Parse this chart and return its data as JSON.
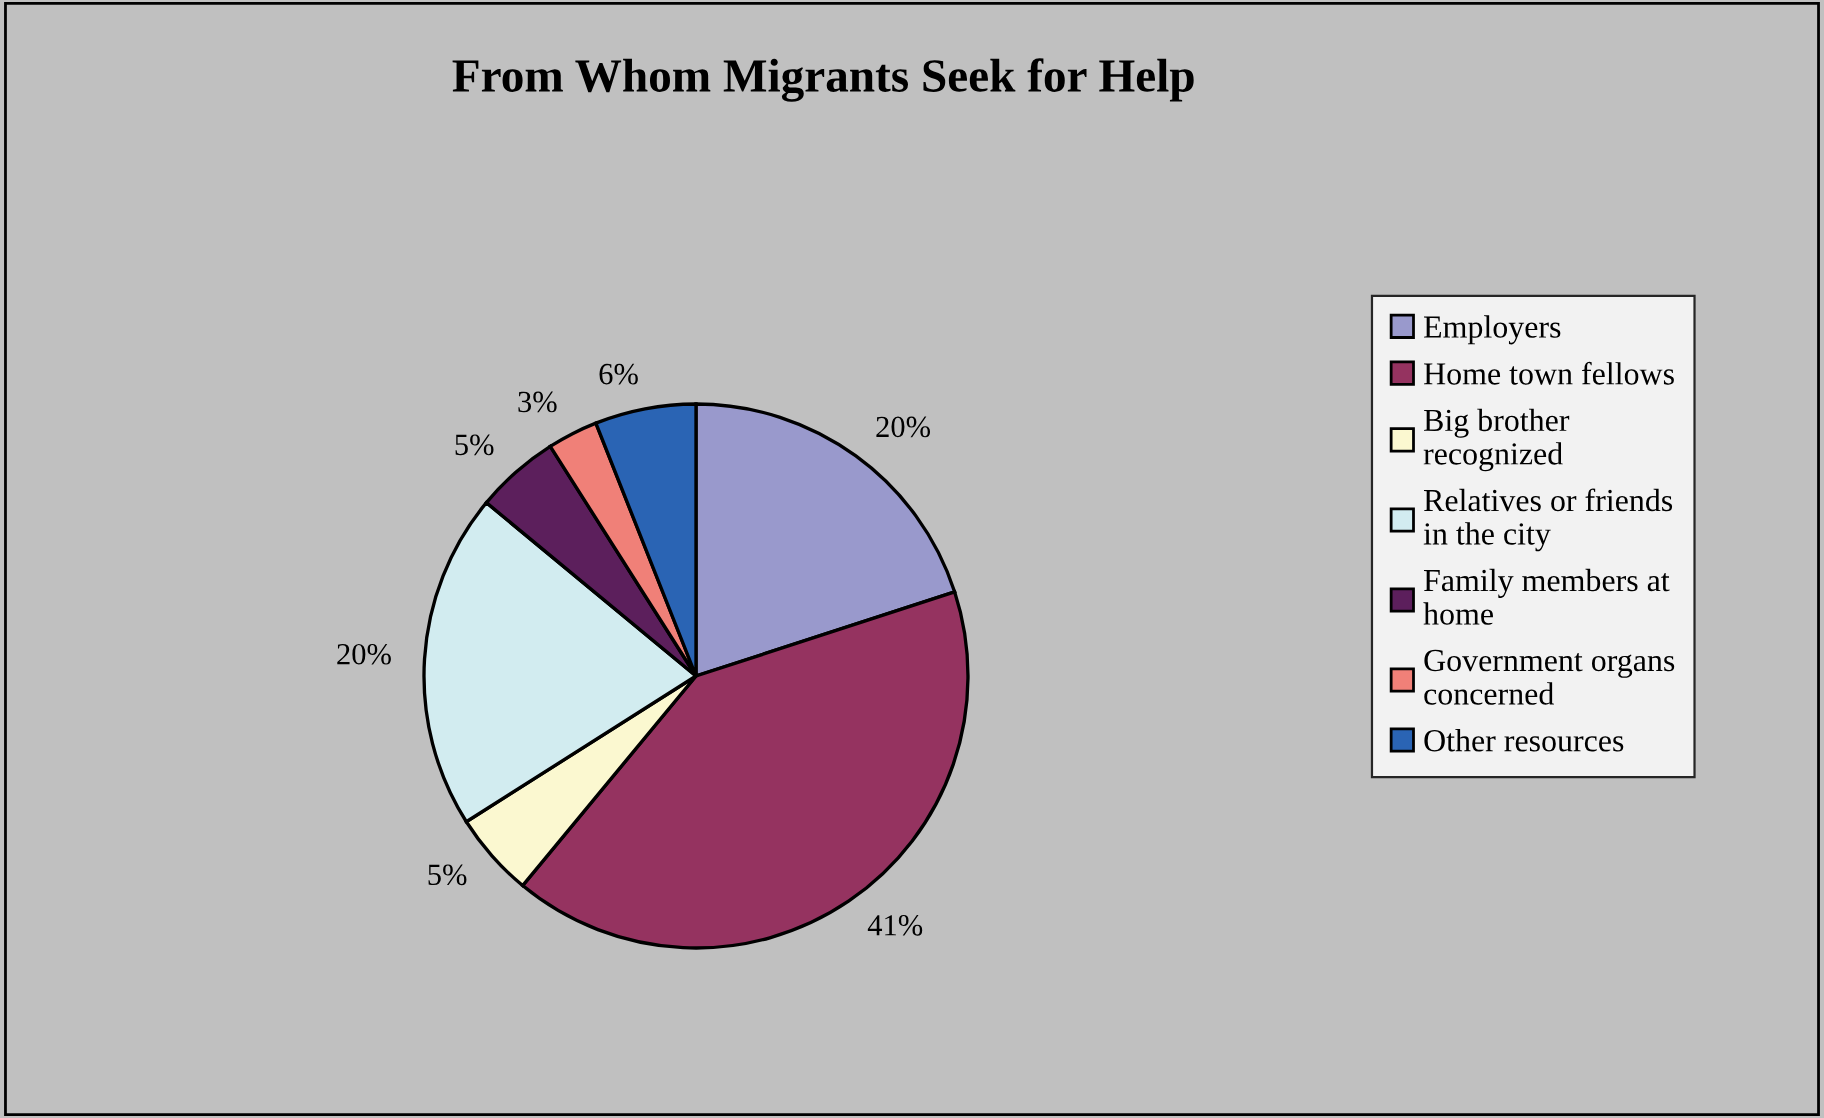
{
  "chart_data": {
    "type": "pie",
    "title": "From Whom Migrants Seek for Help",
    "categories": [
      "Employers",
      "Home town fellows",
      "Big brother\nrecognized",
      "Relatives or friends\nin the city",
      "Family members at\nhome",
      "Government organs\nconcerned",
      "Other resources"
    ],
    "values": [
      20,
      41,
      5,
      20,
      5,
      3,
      6
    ],
    "value_labels": [
      "20%",
      "41%",
      "5%",
      "20%",
      "5%",
      "3%",
      "6%"
    ],
    "colors": [
      "#9999cc",
      "#953360",
      "#fbf8d0",
      "#d2ecf0",
      "#5c1f5c",
      "#f08078",
      "#2a64b4"
    ],
    "legend": "right"
  }
}
